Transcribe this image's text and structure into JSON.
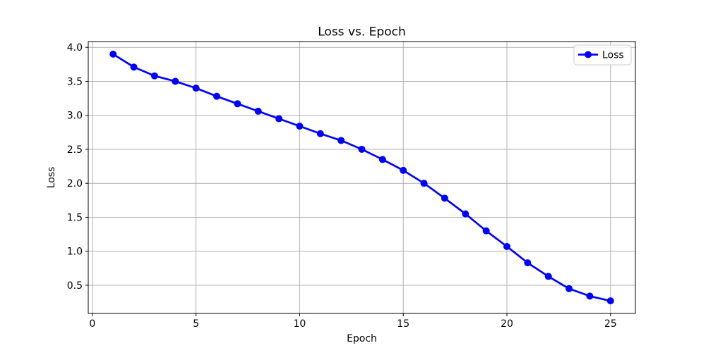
{
  "chart_data": {
    "type": "line",
    "title": "Loss vs. Epoch",
    "xlabel": "Epoch",
    "ylabel": "Loss",
    "x": [
      1,
      2,
      3,
      4,
      5,
      6,
      7,
      8,
      9,
      10,
      11,
      12,
      13,
      14,
      15,
      16,
      17,
      18,
      19,
      20,
      21,
      22,
      23,
      24,
      25
    ],
    "series": [
      {
        "name": "Loss",
        "marker": "circle",
        "values": [
          3.9,
          3.71,
          3.58,
          3.5,
          3.4,
          3.28,
          3.17,
          3.06,
          2.95,
          2.84,
          2.73,
          2.63,
          2.5,
          2.35,
          2.19,
          2.0,
          1.78,
          1.55,
          1.3,
          1.07,
          0.83,
          0.63,
          0.45,
          0.34,
          0.27
        ]
      }
    ],
    "xlim": [
      -0.2,
      26.2
    ],
    "ylim": [
      0.085,
      4.085
    ],
    "xticks": [
      0,
      5,
      10,
      15,
      20,
      25
    ],
    "yticks": [
      0.5,
      1.0,
      1.5,
      2.0,
      2.5,
      3.0,
      3.5,
      4.0
    ],
    "grid": true,
    "legend": {
      "position": "upper right",
      "entries": [
        "Loss"
      ]
    },
    "colors": {
      "line": "#0000ff",
      "grid": "#b0b0b0",
      "axis": "#000000",
      "legend_border": "#cccccc",
      "background": "#ffffff"
    }
  }
}
